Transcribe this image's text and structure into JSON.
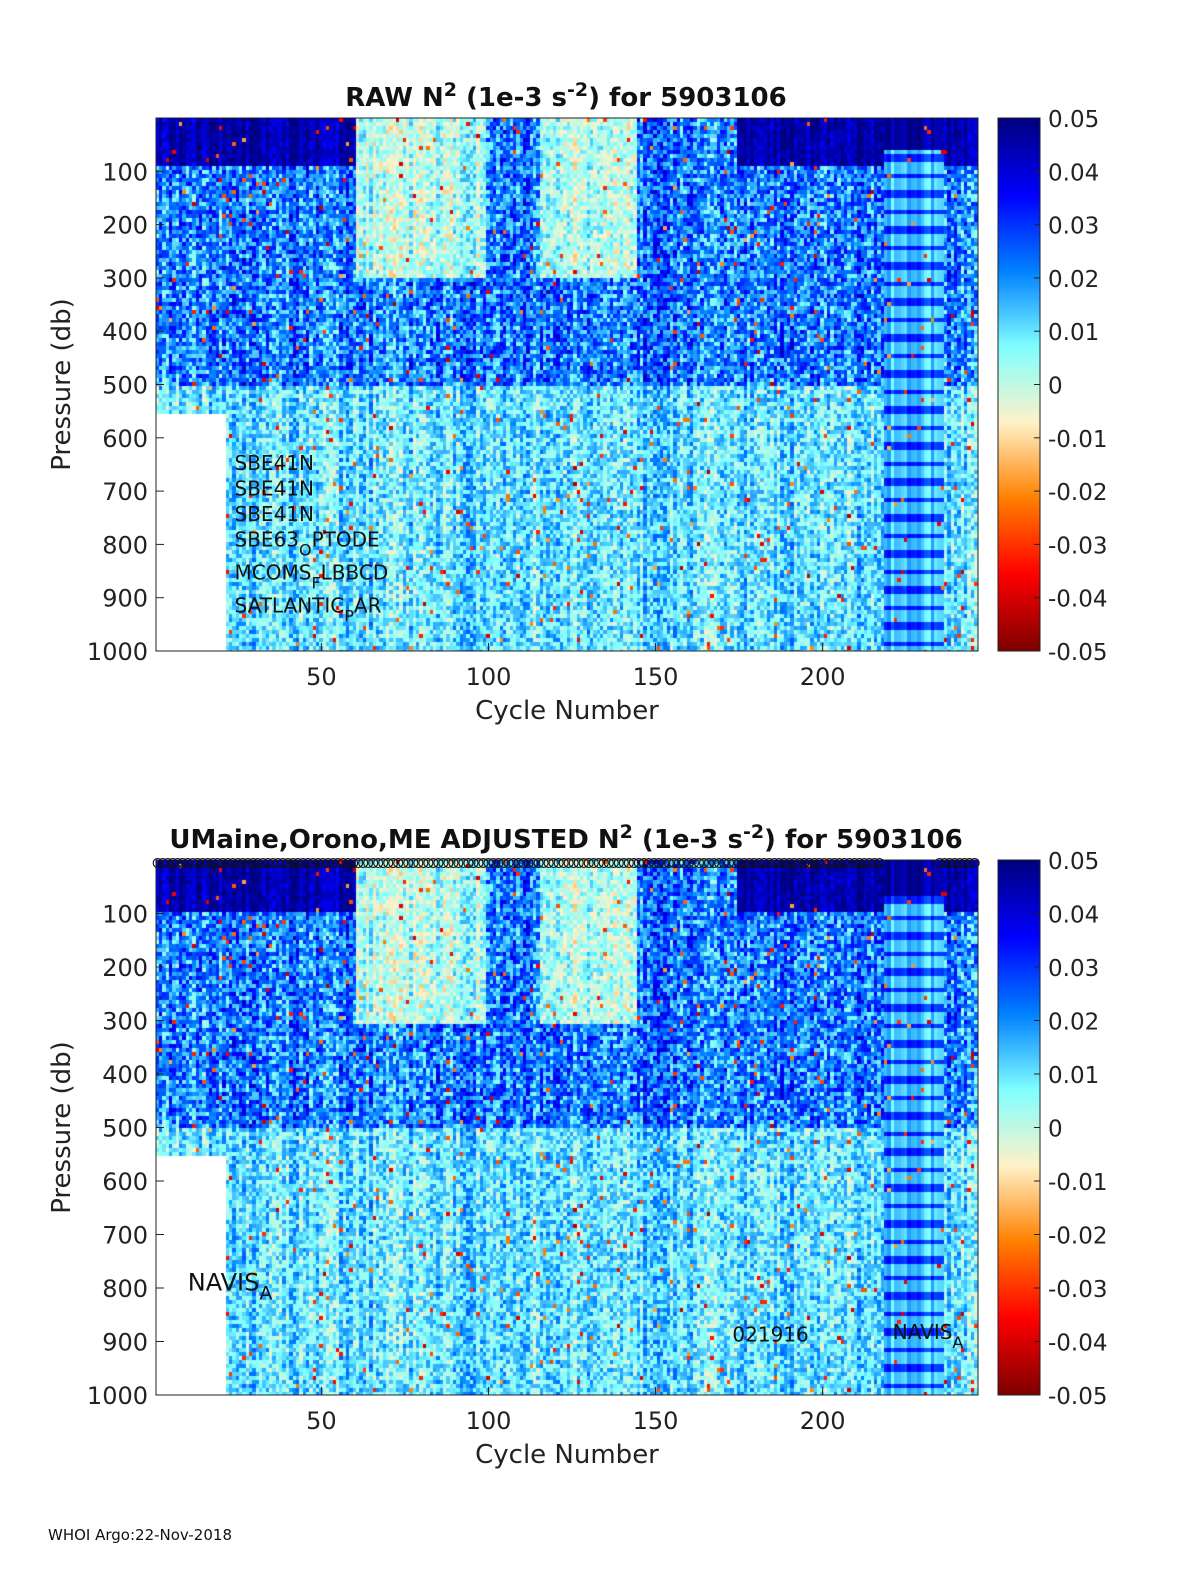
{
  "footer": "WHOI Argo:22-Nov-2018",
  "chart_data": [
    {
      "type": "heatmap",
      "title": {
        "prefix": "RAW N",
        "sup": "2",
        "mid": " (1e-3 s",
        "sup2": "-2",
        "suffix": ") for 5903106"
      },
      "xlabel": "Cycle Number",
      "ylabel": "Pressure (db)",
      "xlim": [
        1,
        246
      ],
      "ylim": [
        1000,
        0
      ],
      "x_ticks": [
        50,
        100,
        150,
        200
      ],
      "y_ticks": [
        100,
        200,
        300,
        400,
        500,
        600,
        700,
        800,
        900,
        1000
      ],
      "colorbar": {
        "min": -0.05,
        "max": 0.05,
        "ticks": [
          "0.05",
          "0.04",
          "0.03",
          "0.02",
          "0.01",
          "0",
          "-0.01",
          "-0.02",
          "-0.03",
          "-0.04",
          "-0.05"
        ]
      },
      "colormap": [
        "#7f0000",
        "#ff0000",
        "#ff8000",
        "#fff2c8",
        "#80ffff",
        "#0080ff",
        "#0000ff",
        "#00007f"
      ],
      "data_extent": {
        "max_depth_db_cycles_1_21": 550,
        "max_depth_db_other": 1000
      },
      "annotations": [
        {
          "text": "SBE41N",
          "x": 24,
          "y": 660
        },
        {
          "text": "SBE41N",
          "x": 24,
          "y": 708
        },
        {
          "text": "SBE41N",
          "x": 24,
          "y": 756
        },
        {
          "text": "SBE63",
          "sub": "O",
          "rest": "PTODE",
          "x": 24,
          "y": 804
        },
        {
          "text": "MCOMS",
          "sub": "F",
          "rest": "LBBCD",
          "x": 24,
          "y": 866
        },
        {
          "text": "SATLANTIC",
          "sub": "P",
          "rest": "AR",
          "x": 24,
          "y": 928
        }
      ]
    },
    {
      "type": "heatmap",
      "title": {
        "prefix": "UMaine,Orono,ME  ADJUSTED N",
        "sup": "2",
        "mid": " (1e-3 s",
        "sup2": "-2",
        "suffix": ") for 5903106"
      },
      "xlabel": "Cycle Number",
      "ylabel": "Pressure (db)",
      "xlim": [
        1,
        246
      ],
      "ylim": [
        1000,
        0
      ],
      "x_ticks": [
        50,
        100,
        150,
        200
      ],
      "y_ticks": [
        100,
        200,
        300,
        400,
        500,
        600,
        700,
        800,
        900,
        1000
      ],
      "colorbar": {
        "min": -0.05,
        "max": 0.05,
        "ticks": [
          "0.05",
          "0.04",
          "0.03",
          "0.02",
          "0.01",
          "0",
          "-0.01",
          "-0.02",
          "-0.03",
          "-0.04",
          "-0.05"
        ]
      },
      "colormap": [
        "#7f0000",
        "#ff0000",
        "#ff8000",
        "#fff2c8",
        "#80ffff",
        "#0080ff",
        "#0000ff",
        "#00007f"
      ],
      "data_extent": {
        "max_depth_db_cycles_1_21": 550,
        "max_depth_db_other": 1000
      },
      "top_marker_cycles": [
        1,
        246
      ],
      "annotations": [
        {
          "text": "NAVIS",
          "sub": "A",
          "rest": "",
          "x": 10,
          "y": 805,
          "big": true
        },
        {
          "text": "021916",
          "x": 173,
          "y": 900
        },
        {
          "text": "NAVIS",
          "sub": "A",
          "rest": "",
          "x": 221,
          "y": 895
        }
      ]
    }
  ]
}
